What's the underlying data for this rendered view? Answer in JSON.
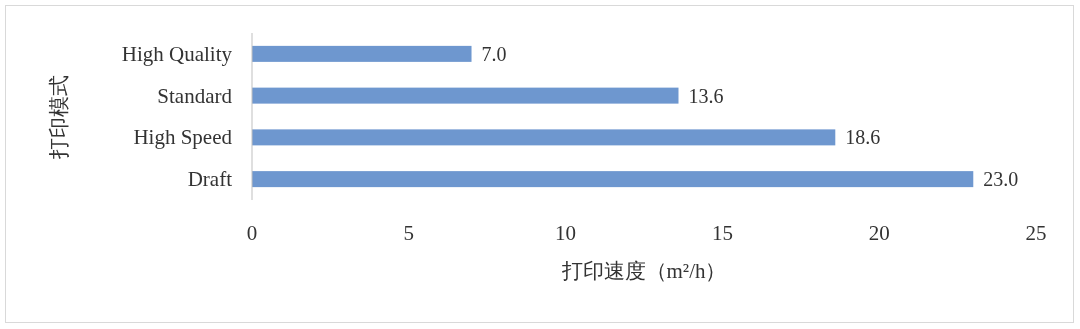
{
  "chart_data": {
    "type": "bar",
    "orientation": "horizontal",
    "categories": [
      "High Quality",
      "Standard",
      "High Speed",
      "Draft"
    ],
    "values": [
      7.0,
      13.6,
      18.6,
      23.0
    ],
    "value_labels": [
      "7.0",
      "13.6",
      "18.6",
      "23.0"
    ],
    "color": "#6e97cf",
    "xlim": [
      0,
      25
    ],
    "xticks": [
      0,
      5,
      10,
      15,
      20,
      25
    ],
    "xlabel": "打印速度（m²/h）",
    "ylabel": "打印模式"
  }
}
